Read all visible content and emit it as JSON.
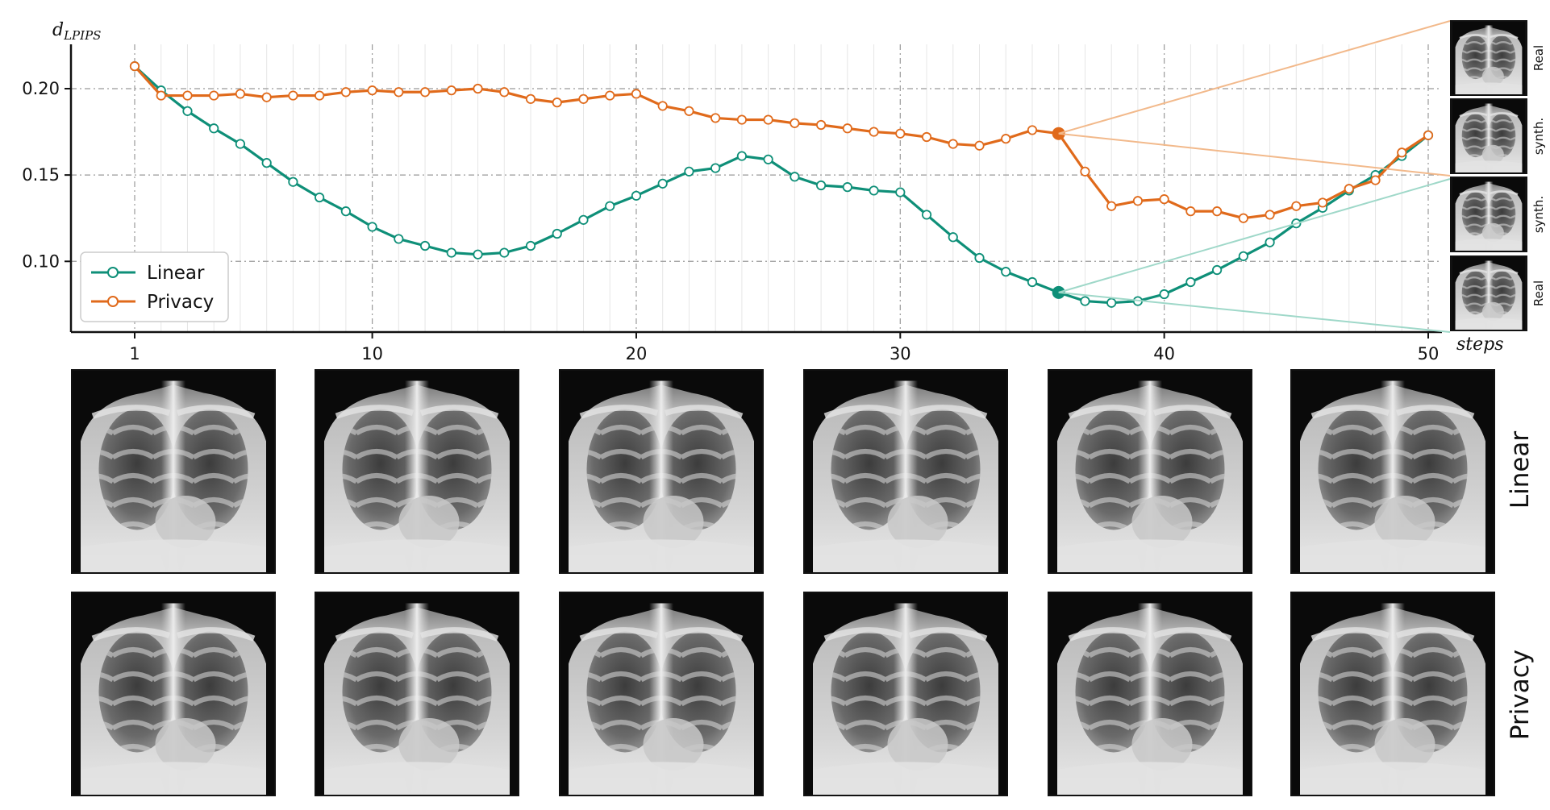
{
  "chart_data": {
    "type": "line",
    "ylabel": "d",
    "ylabel_subscript": "LPIPS",
    "xlabel": "steps",
    "xlim": [
      1,
      50
    ],
    "ylim": [
      0.06,
      0.235
    ],
    "x_ticks": [
      1,
      10,
      20,
      30,
      40,
      50
    ],
    "y_ticks": [
      0.1,
      0.15,
      0.2
    ],
    "y_tick_labels": [
      "0.10",
      "0.15",
      "0.20"
    ],
    "grid": true,
    "legend_position": "lower-left",
    "x": [
      1,
      2,
      3,
      4,
      5,
      6,
      7,
      8,
      9,
      10,
      11,
      12,
      13,
      14,
      15,
      16,
      17,
      18,
      19,
      20,
      21,
      22,
      23,
      24,
      25,
      26,
      27,
      28,
      29,
      30,
      31,
      32,
      33,
      34,
      35,
      36,
      37,
      38,
      39,
      40,
      41,
      42,
      43,
      44,
      45,
      46,
      47,
      48,
      49,
      50
    ],
    "series": [
      {
        "name": "Linear",
        "color": "#0e8f78",
        "values": [
          0.213,
          0.199,
          0.187,
          0.177,
          0.168,
          0.157,
          0.146,
          0.137,
          0.129,
          0.12,
          0.113,
          0.109,
          0.105,
          0.104,
          0.105,
          0.109,
          0.116,
          0.124,
          0.132,
          0.138,
          0.145,
          0.152,
          0.154,
          0.161,
          0.159,
          0.149,
          0.144,
          0.143,
          0.141,
          0.14,
          0.127,
          0.114,
          0.102,
          0.094,
          0.088,
          0.082,
          0.077,
          0.076,
          0.077,
          0.081,
          0.088,
          0.095,
          0.103,
          0.111,
          0.122,
          0.131,
          0.141,
          0.15,
          0.161,
          0.173
        ],
        "highlight_step": 36,
        "highlight_value": 0.082
      },
      {
        "name": "Privacy",
        "color": "#e06a1b",
        "values": [
          0.213,
          0.196,
          0.196,
          0.196,
          0.197,
          0.195,
          0.196,
          0.196,
          0.198,
          0.199,
          0.198,
          0.198,
          0.199,
          0.2,
          0.198,
          0.194,
          0.192,
          0.194,
          0.196,
          0.197,
          0.19,
          0.187,
          0.183,
          0.182,
          0.182,
          0.18,
          0.179,
          0.177,
          0.175,
          0.174,
          0.172,
          0.168,
          0.167,
          0.171,
          0.176,
          0.174,
          0.152,
          0.132,
          0.135,
          0.136,
          0.129,
          0.129,
          0.125,
          0.127,
          0.132,
          0.134,
          0.142,
          0.147,
          0.163,
          0.173
        ],
        "highlight_step": 36,
        "highlight_value": 0.174
      }
    ]
  },
  "side_panel_labels": [
    "Real",
    "synth.",
    "synth.",
    "Real"
  ],
  "row_labels": [
    "Linear",
    "Privacy"
  ]
}
